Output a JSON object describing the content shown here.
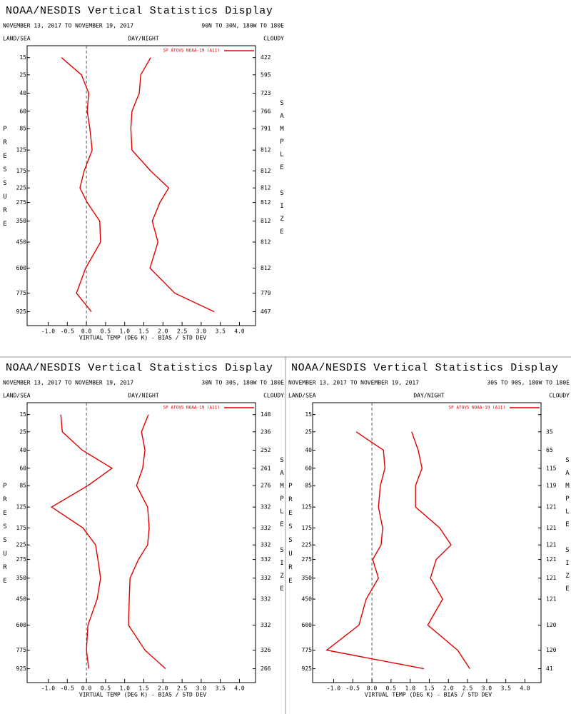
{
  "chart_data": [
    {
      "type": "line",
      "title": "NOAA/NESDIS Vertical Statistics Display",
      "date_range": "NOVEMBER 13, 2017 TO NOVEMBER 19, 2017",
      "region": "90N TO 30N, 180W TO 180E",
      "land_sea": "LAND/SEA",
      "day_night": "DAY/NIGHT",
      "cloudy": "CLOUDY",
      "y_label": "PRESSURE",
      "y2_label": "SAMPLE SIZE",
      "x_label": "VIRTUAL TEMP (DEG K) - BIAS / STD DEV",
      "xlim": [
        -1.55,
        4.42
      ],
      "xticks": [
        {
          "value": -1,
          "label": "-1.0"
        },
        -0.5,
        {
          "value": 0,
          "label": "0.0"
        },
        0.5,
        {
          "value": 1,
          "label": "1.0"
        },
        1.5,
        {
          "value": 2,
          "label": "2.0"
        },
        2.5,
        {
          "value": 3,
          "label": "3.0"
        },
        3.5,
        {
          "value": 4,
          "label": "4.0"
        }
      ],
      "ylim": [
        10,
        1050
      ],
      "yticks": [
        15,
        25,
        40,
        60,
        85,
        125,
        175,
        225,
        275,
        350,
        450,
        600,
        775,
        925
      ],
      "y": [
        15,
        25,
        40,
        60,
        85,
        125,
        175,
        225,
        275,
        350,
        450,
        600,
        775,
        925
      ],
      "sample_sizes": [
        422,
        595,
        723,
        766,
        791,
        812,
        812,
        812,
        812,
        812,
        812,
        812,
        779,
        467
      ],
      "series": [
        {
          "name": "SP ATOVS NOAA-19 (A11)",
          "color": "#e00000",
          "bias": [
            -0.65,
            -0.13,
            0.06,
            0.02,
            0.09,
            0.15,
            -0.06,
            -0.17,
            0.02,
            0.35,
            0.37,
            -0.02,
            -0.26,
            0.13
          ],
          "std_dev": [
            1.68,
            1.42,
            1.38,
            1.19,
            1.16,
            1.19,
            1.68,
            2.15,
            1.92,
            1.72,
            1.87,
            1.66,
            2.31,
            3.34
          ]
        }
      ]
    },
    {
      "type": "line",
      "title": "NOAA/NESDIS Vertical Statistics Display",
      "date_range": "NOVEMBER 13, 2017 TO NOVEMBER 19, 2017",
      "region": "30N TO 30S, 180W TO 180E",
      "land_sea": "LAND/SEA",
      "day_night": "DAY/NIGHT",
      "cloudy": "CLOUDY",
      "y_label": "PRESSURE",
      "y2_label": "SAMPLE SIZE",
      "x_label": "VIRTUAL TEMP (DEG K) - BIAS / STD DEV",
      "xlim": [
        -1.55,
        4.42
      ],
      "xticks": [
        {
          "value": -1,
          "label": "-1.0"
        },
        -0.5,
        {
          "value": 0,
          "label": "0.0"
        },
        0.5,
        {
          "value": 1,
          "label": "1.0"
        },
        1.5,
        {
          "value": 2,
          "label": "2.0"
        },
        2.5,
        {
          "value": 3,
          "label": "3.0"
        },
        3.5,
        {
          "value": 4,
          "label": "4.0"
        }
      ],
      "ylim": [
        10,
        1050
      ],
      "yticks": [
        15,
        25,
        40,
        60,
        85,
        125,
        175,
        225,
        275,
        350,
        450,
        600,
        775,
        925
      ],
      "y": [
        15,
        25,
        40,
        60,
        85,
        125,
        175,
        225,
        275,
        350,
        450,
        600,
        775,
        925
      ],
      "sample_sizes": [
        148,
        236,
        252,
        261,
        276,
        332,
        332,
        332,
        332,
        332,
        332,
        332,
        326,
        266
      ],
      "series": [
        {
          "name": "SP ATOVS NOAA-19 (A11)",
          "color": "#e00000",
          "bias": [
            -0.67,
            -0.63,
            -0.11,
            0.67,
            0.04,
            -0.91,
            -0.09,
            0.24,
            0.3,
            0.37,
            0.28,
            0.04,
            0.0,
            0.06
          ],
          "std_dev": [
            1.62,
            1.44,
            1.53,
            1.47,
            1.31,
            1.6,
            1.64,
            1.6,
            1.36,
            1.14,
            1.12,
            1.1,
            1.53,
            2.07
          ]
        }
      ]
    },
    {
      "type": "line",
      "title": "NOAA/NESDIS Vertical Statistics Display",
      "date_range": "NOVEMBER 13, 2017 TO NOVEMBER 19, 2017",
      "region": "30S TO 90S, 180W TO 180E",
      "land_sea": "LAND/SEA",
      "day_night": "DAY/NIGHT",
      "cloudy": "CLOUDY",
      "y_label": "PRESSURE",
      "y2_label": "SAMPLE SIZE",
      "x_label": "VIRTUAL TEMP (DEG K) - BIAS / STD DEV",
      "xlim": [
        -1.55,
        4.42
      ],
      "xticks": [
        {
          "value": -1,
          "label": "-1.0"
        },
        -0.5,
        {
          "value": 0,
          "label": "0.0"
        },
        0.5,
        {
          "value": 1,
          "label": "1.0"
        },
        1.5,
        {
          "value": 2,
          "label": "2.0"
        },
        2.5,
        {
          "value": 3,
          "label": "3.0"
        },
        3.5,
        {
          "value": 4,
          "label": "4.0"
        }
      ],
      "ylim": [
        10,
        1050
      ],
      "yticks": [
        15,
        25,
        40,
        60,
        85,
        125,
        175,
        225,
        275,
        350,
        450,
        600,
        775,
        925
      ],
      "y": [
        15,
        25,
        40,
        60,
        85,
        125,
        175,
        225,
        275,
        350,
        450,
        600,
        775,
        925
      ],
      "sample_sizes": [
        null,
        35,
        65,
        115,
        119,
        121,
        121,
        121,
        121,
        121,
        121,
        120,
        120,
        41
      ],
      "series": [
        {
          "name": "SP ATOVS NOAA-19 (A11)",
          "color": "#e00000",
          "bias": [
            null,
            -0.41,
            0.3,
            0.34,
            0.22,
            0.17,
            0.28,
            0.24,
            0.02,
            0.17,
            -0.15,
            -0.34,
            -1.18,
            1.36
          ],
          "std_dev": [
            null,
            1.04,
            1.21,
            1.31,
            1.14,
            1.14,
            1.77,
            2.07,
            1.68,
            1.53,
            1.85,
            1.46,
            2.24,
            2.56
          ]
        }
      ]
    }
  ]
}
